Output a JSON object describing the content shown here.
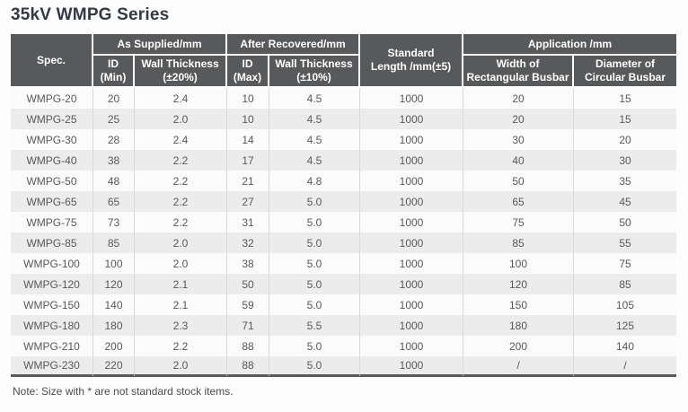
{
  "title": "35kV WMPG Series",
  "note": "Note: Size with * are not standard stock items.",
  "colors": {
    "header_bg": "#58595b",
    "header_text": "#ffffff",
    "row_bg": "#fbfbfb",
    "row_alt_bg": "#ececec",
    "divider": "#d9d9d9",
    "title_text": "#333a45",
    "body_text": "#595959",
    "bottom_border": "#58595b"
  },
  "table": {
    "header": {
      "spec": "Spec.",
      "as_supplied": "As Supplied/mm",
      "after_recovered": "After Recovered/mm",
      "standard_length": "Standard\nLength /mm(±5)",
      "application": "Application /mm",
      "id_min": "ID\n(Min)",
      "wall_thickness_20": "Wall Thickness\n(±20%)",
      "id_max": "ID\n(Max)",
      "wall_thickness_10": "Wall Thickness\n(±10%)",
      "width_rectangular": "Width of\nRectangular Busbar",
      "diameter_circular": "Diameter of\nCircular Busbar"
    },
    "columns": [
      "Spec.",
      "ID (Min)",
      "Wall Thickness (±20%)",
      "ID (Max)",
      "Wall Thickness (±10%)",
      "Standard Length /mm(±5)",
      "Width of Rectangular Busbar",
      "Diameter of Circular Busbar"
    ],
    "rows": [
      [
        "WMPG-20",
        "20",
        "2.4",
        "10",
        "4.5",
        "1000",
        "20",
        "15"
      ],
      [
        "WMPG-25",
        "25",
        "2.0",
        "10",
        "4.5",
        "1000",
        "20",
        "15"
      ],
      [
        "WMPG-30",
        "28",
        "2.4",
        "14",
        "4.5",
        "1000",
        "30",
        "20"
      ],
      [
        "WMPG-40",
        "38",
        "2.2",
        "17",
        "4.5",
        "1000",
        "40",
        "30"
      ],
      [
        "WMPG-50",
        "48",
        "2.2",
        "21",
        "4.8",
        "1000",
        "50",
        "35"
      ],
      [
        "WMPG-65",
        "65",
        "2.2",
        "27",
        "5.0",
        "1000",
        "65",
        "45"
      ],
      [
        "WMPG-75",
        "73",
        "2.2",
        "31",
        "5.0",
        "1000",
        "75",
        "50"
      ],
      [
        "WMPG-85",
        "85",
        "2.0",
        "32",
        "5.0",
        "1000",
        "85",
        "55"
      ],
      [
        "WMPG-100",
        "100",
        "2.0",
        "38",
        "5.0",
        "1000",
        "100",
        "75"
      ],
      [
        "WMPG-120",
        "120",
        "2.1",
        "50",
        "5.0",
        "1000",
        "120",
        "85"
      ],
      [
        "WMPG-150",
        "140",
        "2.1",
        "59",
        "5.0",
        "1000",
        "150",
        "105"
      ],
      [
        "WMPG-180",
        "180",
        "2.3",
        "71",
        "5.5",
        "1000",
        "180",
        "125"
      ],
      [
        "WMPG-210",
        "200",
        "2.2",
        "88",
        "5.0",
        "1000",
        "200",
        "140"
      ],
      [
        "WMPG-230",
        "220",
        "2.0",
        "88",
        "5.0",
        "1000",
        "/",
        "/"
      ]
    ]
  }
}
